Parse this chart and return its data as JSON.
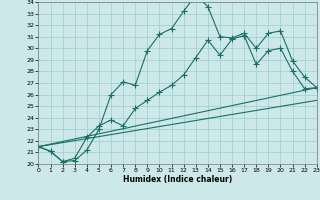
{
  "xlabel": "Humidex (Indice chaleur)",
  "xlim": [
    0,
    23
  ],
  "ylim": [
    20,
    34
  ],
  "xticks": [
    0,
    1,
    2,
    3,
    4,
    5,
    6,
    7,
    8,
    9,
    10,
    11,
    12,
    13,
    14,
    15,
    16,
    17,
    18,
    19,
    20,
    21,
    22,
    23
  ],
  "yticks": [
    20,
    21,
    22,
    23,
    24,
    25,
    26,
    27,
    28,
    29,
    30,
    31,
    32,
    33,
    34
  ],
  "bg_color": "#cce8e8",
  "line_color": "#1a6e6a",
  "grid_color": "#9ecece",
  "line1_x": [
    0,
    1,
    2,
    3,
    4,
    5,
    6,
    7,
    8,
    9,
    10,
    11,
    12,
    13,
    14,
    15,
    16,
    17,
    18,
    19,
    20,
    21,
    22,
    23
  ],
  "line1_y": [
    21.5,
    21.1,
    20.2,
    20.3,
    21.2,
    23.0,
    26.0,
    27.1,
    26.8,
    29.8,
    31.2,
    31.7,
    33.2,
    34.6,
    33.6,
    31.0,
    30.9,
    31.3,
    30.0,
    31.3,
    31.5,
    28.9,
    27.5,
    26.6
  ],
  "line2_x": [
    0,
    1,
    2,
    3,
    4,
    5,
    6,
    7,
    8,
    9,
    10,
    11,
    12,
    13,
    14,
    15,
    16,
    17,
    18,
    19,
    20,
    21,
    22,
    23
  ],
  "line2_y": [
    21.5,
    21.1,
    20.2,
    20.5,
    22.3,
    23.3,
    23.8,
    23.3,
    24.8,
    25.5,
    26.2,
    26.8,
    27.7,
    29.2,
    30.7,
    29.4,
    30.8,
    31.1,
    28.6,
    29.8,
    30.0,
    28.0,
    26.5,
    26.6
  ],
  "line3_x": [
    0,
    23
  ],
  "line3_y": [
    21.5,
    26.6
  ],
  "line4_x": [
    0,
    23
  ],
  "line4_y": [
    21.5,
    25.5
  ]
}
